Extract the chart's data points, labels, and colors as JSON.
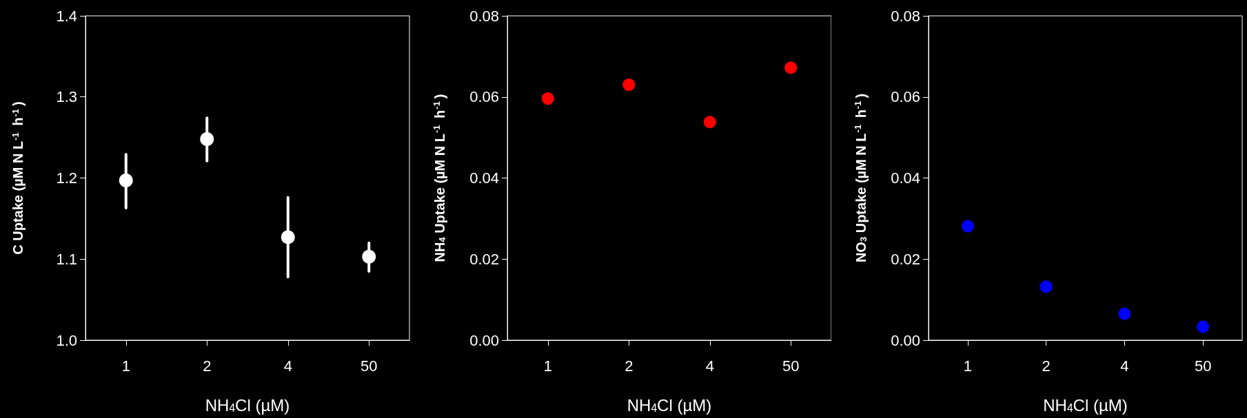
{
  "chart_data": [
    {
      "type": "scatter",
      "categories": [
        "1",
        "2",
        "4",
        "50"
      ],
      "values": [
        1.197,
        1.248,
        1.127,
        1.103
      ],
      "errors": [
        [
          1.163,
          1.229
        ],
        [
          1.221,
          1.274
        ],
        [
          1.078,
          1.176
        ],
        [
          1.085,
          1.12
        ]
      ],
      "color": "#ffffff",
      "marker": "circle",
      "xlabel": "NH$_{4}$Cl (µM)",
      "ylabel": "C Uptake (µM N L$^{-1}$ h$^{-1}$)",
      "ylim": [
        1.0,
        1.4
      ],
      "yticks": [
        {
          "value": 1.0,
          "label": "1.0"
        },
        {
          "value": 1.1,
          "label": "1.1"
        },
        {
          "value": 1.2,
          "label": "1.2"
        },
        {
          "value": 1.3,
          "label": "1.3"
        },
        {
          "value": 1.4,
          "label": "1.4"
        }
      ]
    },
    {
      "type": "scatter",
      "categories": [
        "1",
        "2",
        "4",
        "50"
      ],
      "values": [
        0.0596,
        0.063,
        0.0538,
        0.0672
      ],
      "color": "#ff0000",
      "marker": "circle",
      "xlabel": "NH$_{4}$Cl (µM)",
      "ylabel": "NH$_{4}$ Uptake (µM N L$^{-1}$ h$^{-1}$)",
      "ylim": [
        0,
        0.08
      ],
      "yticks": [
        {
          "value": 0,
          "label": "0.00"
        },
        {
          "value": 0.02,
          "label": "0.02"
        },
        {
          "value": 0.04,
          "label": "0.04"
        },
        {
          "value": 0.06,
          "label": "0.06"
        },
        {
          "value": 0.08,
          "label": "0.08"
        }
      ]
    },
    {
      "type": "scatter",
      "categories": [
        "1",
        "2",
        "4",
        "50"
      ],
      "values": [
        0.0281,
        0.0132,
        0.0065,
        0.0033
      ],
      "color": "#0000ff",
      "marker": "circle",
      "xlabel": "NH$_{4}$Cl (µM)",
      "ylabel": "NO$_{3}$ Uptake (µM N L$^{-1}$ h$^{-1}$)",
      "ylim": [
        0,
        0.08
      ],
      "yticks": [
        {
          "value": 0,
          "label": "0.00"
        },
        {
          "value": 0.02,
          "label": "0.02"
        },
        {
          "value": 0.04,
          "label": "0.04"
        },
        {
          "value": 0.06,
          "label": "0.06"
        },
        {
          "value": 0.08,
          "label": "0.08"
        }
      ]
    }
  ]
}
